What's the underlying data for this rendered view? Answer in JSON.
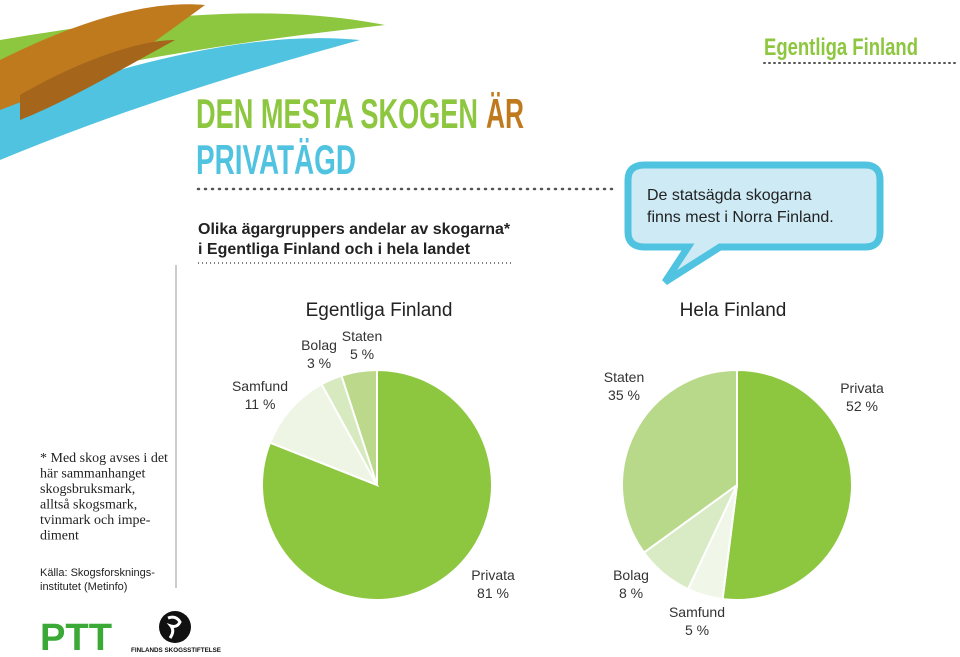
{
  "header": {
    "title_line1": "DEN MESTA SKOGEN",
    "title_highlight": "ÄR",
    "title_line2": "PRIVATÄGD",
    "region": "Egentliga Finland",
    "subtitle_line1": "Olika ägargruppers andelar av skogarna*",
    "subtitle_line2": "i Egentliga Finland och i hela landet"
  },
  "callout": {
    "line1": "De statsägda skogarna",
    "line2": "finns mest i Norra Finland."
  },
  "footnote": [
    "* Med skog avses i det",
    "här sammanhanget",
    "skogsbruksmark,",
    "alltså skogsmark,",
    "tvinmark och impe-",
    "diment"
  ],
  "source": [
    "Källa: Skogsforsknings-",
    "institutet (Metinfo)"
  ],
  "logos": {
    "ptt": "PTT",
    "foundation": "FINLANDS SKOGSSTIFTELSE"
  },
  "chart_data": [
    {
      "type": "pie",
      "title": "Egentliga Finland",
      "categories": [
        "Privata",
        "Samfund",
        "Bolag",
        "Staten"
      ],
      "values": [
        81,
        11,
        3,
        5
      ],
      "value_labels": [
        "81 %",
        "11 %",
        "3 %",
        "5 %"
      ],
      "colors": [
        "#8dc63f",
        "#eef5e4",
        "#d6e9bf",
        "#bcd98b"
      ]
    },
    {
      "type": "pie",
      "title": "Hela Finland",
      "categories": [
        "Privata",
        "Samfund",
        "Bolag",
        "Staten"
      ],
      "values": [
        52,
        5,
        8,
        35
      ],
      "value_labels": [
        "52 %",
        "5 %",
        "8 %",
        "35 %"
      ],
      "colors": [
        "#8dc63f",
        "#f0f6e8",
        "#d9ebc4",
        "#b9d98a"
      ]
    }
  ]
}
